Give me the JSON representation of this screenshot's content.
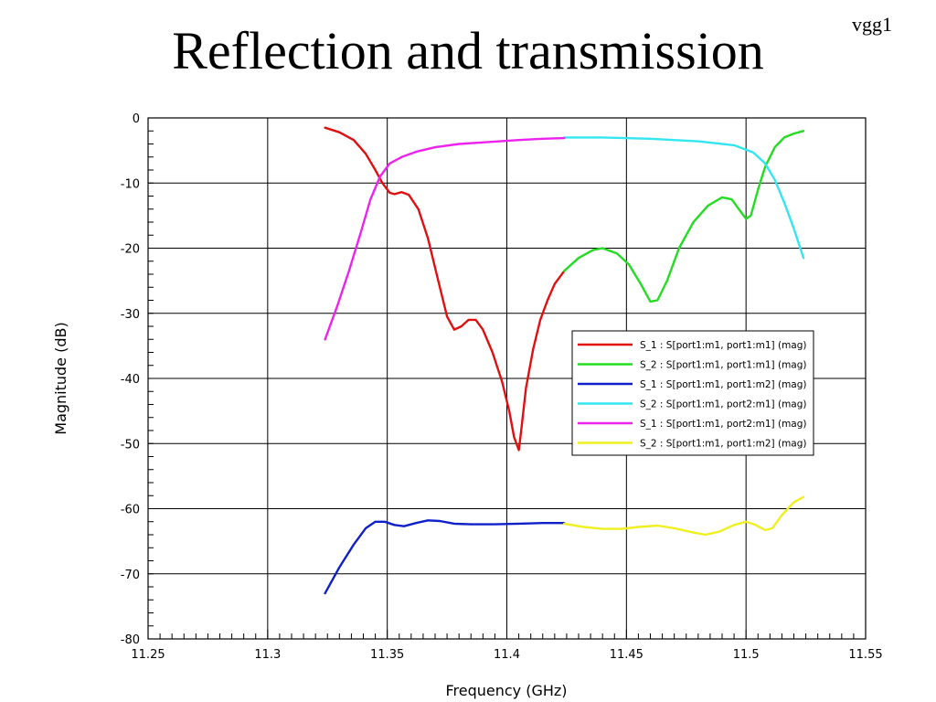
{
  "slide": {
    "title": "Reflection and transmission",
    "tag": "vgg1"
  },
  "colors": {
    "red": "#e01010",
    "green": "#22dd22",
    "blue": "#1020c8",
    "cyan": "#33e6f0",
    "magenta": "#ee22ee",
    "yellow": "#f0f020",
    "grid": "#000000"
  },
  "chart_data": {
    "type": "line",
    "xlabel": "Frequency (GHz)",
    "ylabel": "Magnitude (dB)",
    "xlim": [
      11.25,
      11.55
    ],
    "ylim": [
      -80,
      0
    ],
    "x_ticks": [
      "11.25",
      "11.3",
      "11.35",
      "11.4",
      "11.45",
      "11.5",
      "11.55"
    ],
    "y_ticks": [
      "0",
      "-10",
      "-20",
      "-30",
      "-40",
      "-50",
      "-60",
      "-70",
      "-80"
    ],
    "grid": true,
    "legend_position": "center-right",
    "series": [
      {
        "name": "S_1 : S[port1:m1, port1:m1] (mag)",
        "color": "red",
        "x": [
          11.324,
          11.33,
          11.336,
          11.341,
          11.345,
          11.348,
          11.351,
          11.353,
          11.356,
          11.359,
          11.363,
          11.367,
          11.371,
          11.375,
          11.378,
          11.381,
          11.384,
          11.387,
          11.39,
          11.394,
          11.398,
          11.401,
          11.403,
          11.405,
          11.406,
          11.408,
          11.411,
          11.414,
          11.417,
          11.42,
          11.424
        ],
        "y": [
          -1.5,
          -2.2,
          -3.4,
          -5.5,
          -8.0,
          -10.0,
          -11.5,
          -11.7,
          -11.4,
          -11.8,
          -14.0,
          -18.5,
          -24.5,
          -30.5,
          -32.5,
          -32.0,
          -31.0,
          -31.0,
          -32.5,
          -36.0,
          -40.5,
          -45.0,
          -49.0,
          -51.0,
          -48.0,
          -41.5,
          -35.5,
          -31.0,
          -28.0,
          -25.5,
          -23.5
        ]
      },
      {
        "name": "S_2 : S[port1:m1, port1:m1] (mag)",
        "color": "green",
        "x": [
          11.424,
          11.43,
          11.436,
          11.44,
          11.446,
          11.451,
          11.456,
          11.46,
          11.463,
          11.467,
          11.472,
          11.478,
          11.484,
          11.49,
          11.494,
          11.497,
          11.5,
          11.502,
          11.505,
          11.508,
          11.512,
          11.516,
          11.52,
          11.524
        ],
        "y": [
          -23.5,
          -21.5,
          -20.3,
          -20.0,
          -20.8,
          -22.5,
          -25.5,
          -28.2,
          -28.0,
          -25.0,
          -20.0,
          -16.0,
          -13.5,
          -12.2,
          -12.5,
          -14.0,
          -15.5,
          -15.0,
          -11.0,
          -7.5,
          -4.5,
          -3.0,
          -2.4,
          -2.0
        ]
      },
      {
        "name": "S_1 : S[port1:m1, port1:m2] (mag)",
        "color": "blue",
        "x": [
          11.324,
          11.33,
          11.336,
          11.341,
          11.345,
          11.349,
          11.353,
          11.357,
          11.362,
          11.367,
          11.372,
          11.378,
          11.385,
          11.395,
          11.405,
          11.415,
          11.424
        ],
        "y": [
          -73.0,
          -69.0,
          -65.5,
          -63.0,
          -62.0,
          -62.0,
          -62.5,
          -62.7,
          -62.2,
          -61.8,
          -61.9,
          -62.3,
          -62.4,
          -62.4,
          -62.3,
          -62.2,
          -62.2
        ]
      },
      {
        "name": "S_2 : S[port1:m1, port2:m1] (mag)",
        "color": "cyan",
        "x": [
          11.424,
          11.44,
          11.46,
          11.48,
          11.495,
          11.503,
          11.508,
          11.512,
          11.516,
          11.52,
          11.524
        ],
        "y": [
          -3.0,
          -3.0,
          -3.2,
          -3.6,
          -4.2,
          -5.3,
          -7.0,
          -9.5,
          -13.0,
          -17.0,
          -21.5
        ]
      },
      {
        "name": "S_1 : S[port1:m1, port2:m1] (mag)",
        "color": "magenta",
        "x": [
          11.324,
          11.329,
          11.334,
          11.339,
          11.343,
          11.347,
          11.351,
          11.356,
          11.362,
          11.37,
          11.38,
          11.392,
          11.405,
          11.415,
          11.424
        ],
        "y": [
          -34.0,
          -29.0,
          -23.5,
          -17.5,
          -12.5,
          -9.0,
          -7.0,
          -6.0,
          -5.2,
          -4.5,
          -4.0,
          -3.7,
          -3.4,
          -3.2,
          -3.1
        ]
      },
      {
        "name": "S_2 : S[port1:m1, port1:m2] (mag)",
        "color": "yellow",
        "x": [
          11.424,
          11.432,
          11.44,
          11.448,
          11.455,
          11.463,
          11.47,
          11.477,
          11.483,
          11.489,
          11.495,
          11.5,
          11.504,
          11.508,
          11.511,
          11.515,
          11.52,
          11.524
        ],
        "y": [
          -62.3,
          -62.8,
          -63.1,
          -63.1,
          -62.8,
          -62.6,
          -63.0,
          -63.6,
          -64.0,
          -63.5,
          -62.5,
          -62.0,
          -62.5,
          -63.3,
          -63.0,
          -61.0,
          -59.0,
          -58.2
        ]
      }
    ]
  }
}
